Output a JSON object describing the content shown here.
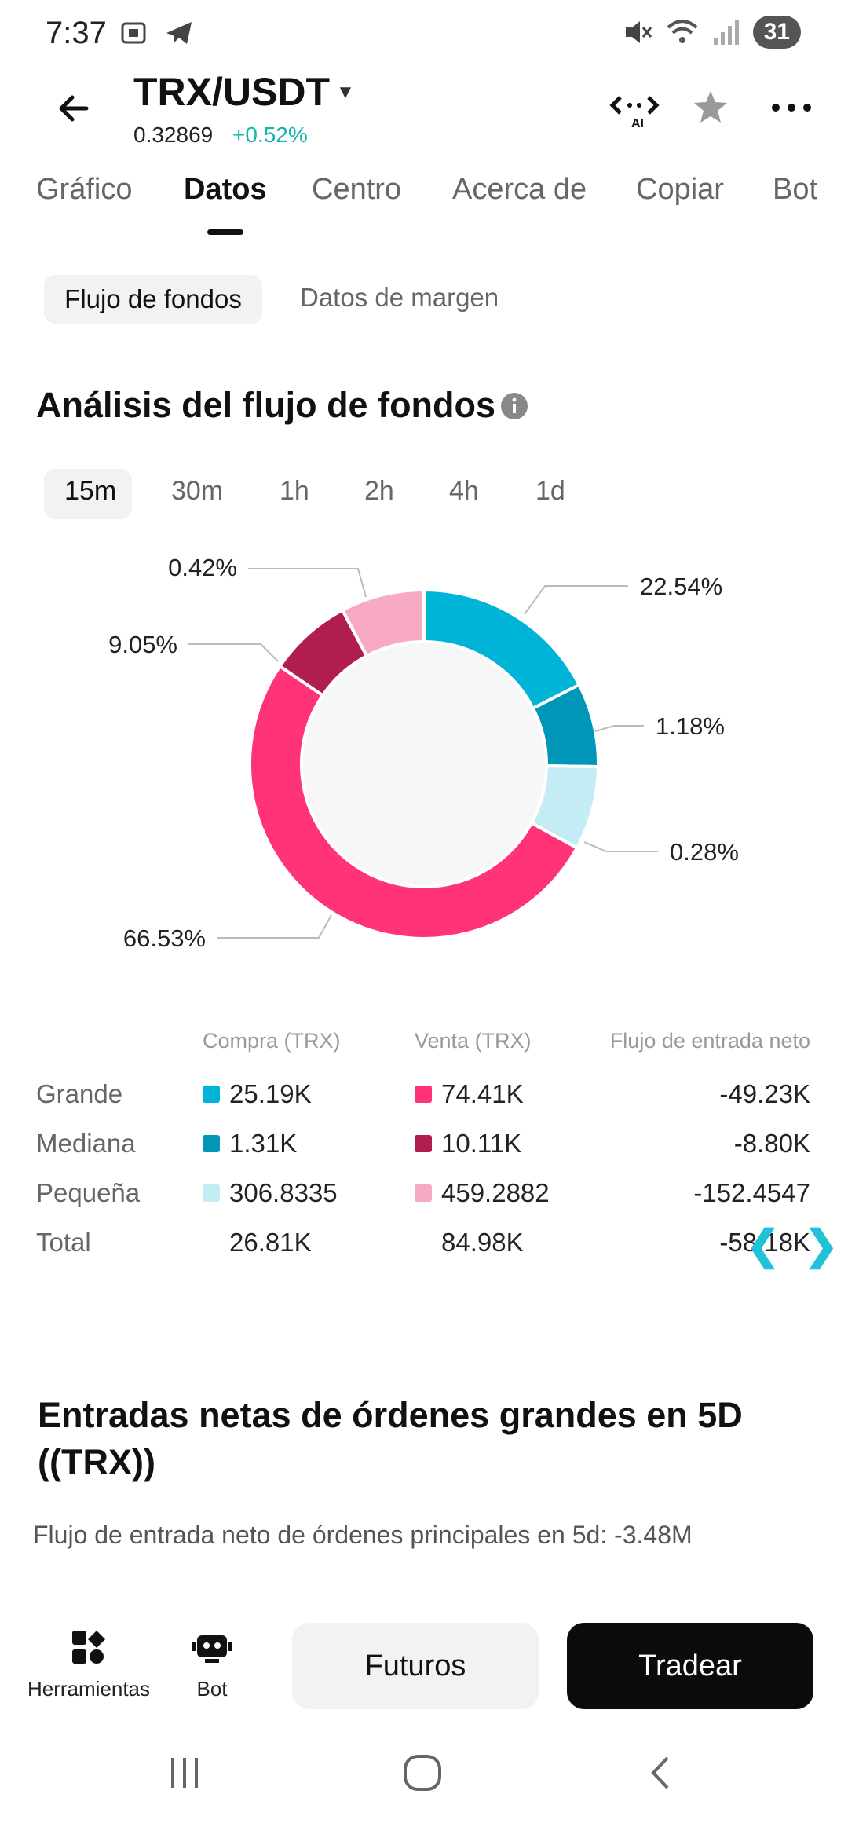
{
  "status": {
    "time": "7:37",
    "battery": "31"
  },
  "header": {
    "pair": "TRX/USDT",
    "price": "0.32869",
    "change": "+0.52%"
  },
  "tabs": [
    {
      "label": "Gráfico"
    },
    {
      "label": "Datos"
    },
    {
      "label": "Centro"
    },
    {
      "label": "Acerca de"
    },
    {
      "label": "Copiar"
    },
    {
      "label": "Bot"
    }
  ],
  "subtabs": [
    {
      "label": "Flujo de fondos"
    },
    {
      "label": "Datos de margen"
    }
  ],
  "section": {
    "title": "Análisis del flujo de fondos"
  },
  "time_ranges": [
    {
      "label": "15m"
    },
    {
      "label": "30m"
    },
    {
      "label": "1h"
    },
    {
      "label": "2h"
    },
    {
      "label": "4h"
    },
    {
      "label": "1d"
    }
  ],
  "colors": {
    "large_buy": "#00b4d8",
    "medium_buy": "#0096b7",
    "small_buy": "#c4ecf4",
    "large_sell": "#ff3375",
    "medium_sell": "#b01e4e",
    "small_sell": "#f9aac3",
    "accent": "#16b3ad"
  },
  "chart_data": {
    "type": "pie",
    "style": "donut",
    "labels": [
      "22.54%",
      "1.18%",
      "0.28%",
      "66.53%",
      "9.05%",
      "0.42%"
    ],
    "slices": [
      {
        "category": "Grande",
        "side": "Compra",
        "value": 22.54,
        "color": "#00b4d8"
      },
      {
        "category": "Mediana",
        "side": "Compra",
        "value": 1.18,
        "color": "#0096b7"
      },
      {
        "category": "Pequeña",
        "side": "Compra",
        "value": 0.28,
        "color": "#c4ecf4"
      },
      {
        "category": "Grande",
        "side": "Venta",
        "value": 66.53,
        "color": "#ff3375"
      },
      {
        "category": "Mediana",
        "side": "Venta",
        "value": 9.05,
        "color": "#b01e4e"
      },
      {
        "category": "Pequeña",
        "side": "Venta",
        "value": 0.42,
        "color": "#f9aac3"
      }
    ]
  },
  "table": {
    "headers": {
      "buy": "Compra (TRX)",
      "sell": "Venta (TRX)",
      "net": "Flujo de entrada neto"
    },
    "rows": [
      {
        "label": "Grande",
        "buy": "25.19K",
        "sell": "74.41K",
        "net": "-49.23K"
      },
      {
        "label": "Mediana",
        "buy": "1.31K",
        "sell": "10.11K",
        "net": "-8.80K"
      },
      {
        "label": "Pequeña",
        "buy": "306.8335",
        "sell": "459.2882",
        "net": "-152.4547"
      },
      {
        "label": "Total",
        "buy": "26.81K",
        "sell": "84.98K",
        "net": "-58.18K"
      }
    ]
  },
  "section2": {
    "title": "Entradas netas de órdenes grandes en 5D ((TRX))",
    "subtitle": "Flujo de entrada neto de órdenes principales en 5d: -3.48M"
  },
  "bottom": {
    "tools": "Herramientas",
    "bot": "Bot",
    "futures": "Futuros",
    "trade": "Tradear"
  }
}
